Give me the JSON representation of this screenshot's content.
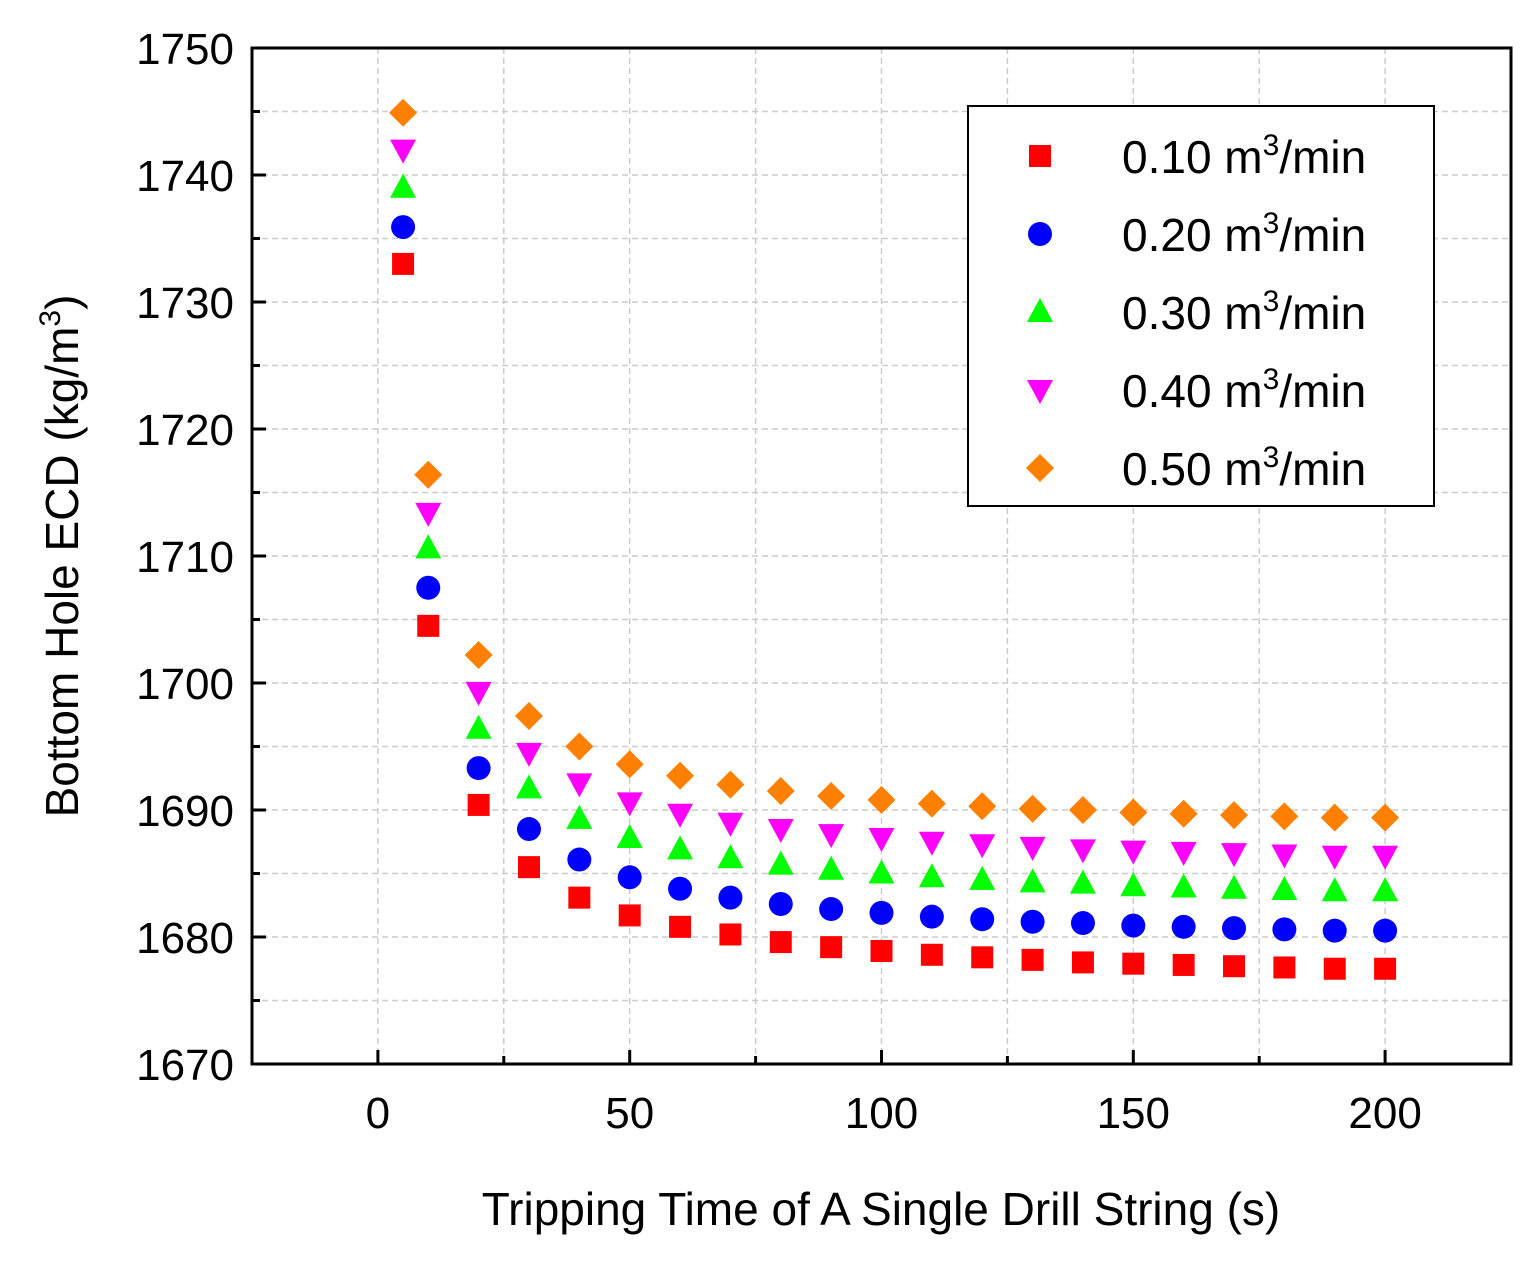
{
  "chart_data": {
    "type": "scatter",
    "title": "",
    "xlabel": "Tripping Time of A Single Drill String (s)",
    "ylabel_main": "Bottom Hole ECD (kg/m",
    "ylabel_sup": "3",
    "ylabel_end": ")",
    "xlim": [
      -25,
      225
    ],
    "ylim": [
      1670,
      1750
    ],
    "xticks": [
      0,
      50,
      100,
      150,
      200
    ],
    "yticks": [
      1670,
      1680,
      1690,
      1700,
      1710,
      1720,
      1730,
      1740,
      1750
    ],
    "grid": true,
    "legend_position": "top-right",
    "x": [
      5,
      10,
      20,
      30,
      40,
      50,
      60,
      70,
      80,
      90,
      100,
      110,
      120,
      130,
      140,
      150,
      160,
      170,
      180,
      190,
      200
    ],
    "series": [
      {
        "name": "0.10 m3/min",
        "label_pre": "0.10 m",
        "label_sup": "3",
        "label_post": "/min",
        "marker": "square",
        "color": "#ff0000",
        "values": [
          1733.0,
          1704.5,
          1690.4,
          1685.5,
          1683.1,
          1681.7,
          1680.8,
          1680.2,
          1679.6,
          1679.2,
          1678.9,
          1678.6,
          1678.4,
          1678.2,
          1678.0,
          1677.9,
          1677.8,
          1677.7,
          1677.6,
          1677.5,
          1677.5
        ]
      },
      {
        "name": "0.20 m3/min",
        "label_pre": "0.20 m",
        "label_sup": "3",
        "label_post": "/min",
        "marker": "circle",
        "color": "#0000ff",
        "values": [
          1735.9,
          1707.5,
          1693.3,
          1688.5,
          1686.1,
          1684.7,
          1683.8,
          1683.1,
          1682.6,
          1682.2,
          1681.9,
          1681.6,
          1681.4,
          1681.2,
          1681.1,
          1680.9,
          1680.8,
          1680.7,
          1680.6,
          1680.5,
          1680.5
        ]
      },
      {
        "name": "0.30 m3/min",
        "label_pre": "0.30 m",
        "label_sup": "3",
        "label_post": "/min",
        "marker": "triangle-up",
        "color": "#00ff00",
        "values": [
          1739.0,
          1710.6,
          1696.4,
          1691.7,
          1689.3,
          1687.8,
          1686.9,
          1686.2,
          1685.7,
          1685.3,
          1685.0,
          1684.7,
          1684.5,
          1684.3,
          1684.2,
          1684.0,
          1683.9,
          1683.8,
          1683.7,
          1683.6,
          1683.6
        ]
      },
      {
        "name": "0.40 m3/min",
        "label_pre": "0.40 m",
        "label_sup": "3",
        "label_post": "/min",
        "marker": "triangle-down",
        "color": "#ff00ff",
        "values": [
          1742.0,
          1713.4,
          1699.3,
          1694.5,
          1692.1,
          1690.6,
          1689.7,
          1689.0,
          1688.5,
          1688.1,
          1687.8,
          1687.5,
          1687.3,
          1687.1,
          1686.9,
          1686.8,
          1686.7,
          1686.6,
          1686.5,
          1686.4,
          1686.4
        ]
      },
      {
        "name": "0.50 m3/min",
        "label_pre": "0.50 m",
        "label_sup": "3",
        "label_post": "/min",
        "marker": "diamond",
        "color": "#ff8000",
        "values": [
          1744.9,
          1716.4,
          1702.2,
          1697.4,
          1695.0,
          1693.6,
          1692.7,
          1692.0,
          1691.5,
          1691.1,
          1690.8,
          1690.5,
          1690.3,
          1690.1,
          1690.0,
          1689.8,
          1689.7,
          1689.6,
          1689.5,
          1689.4,
          1689.4
        ]
      }
    ]
  }
}
